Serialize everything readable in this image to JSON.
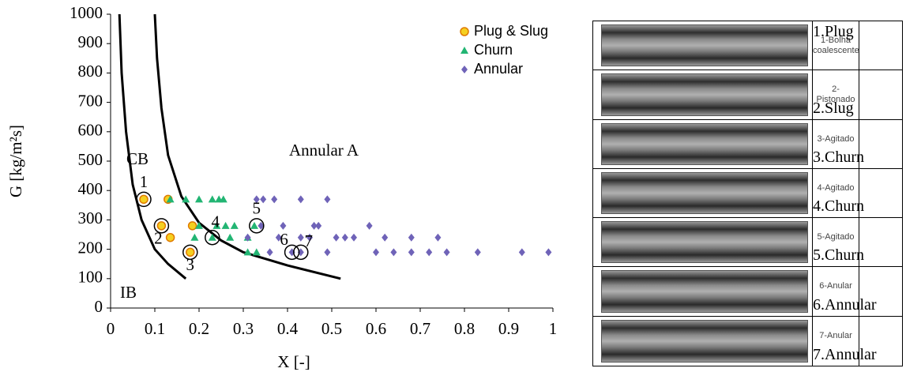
{
  "chart_data": {
    "type": "scatter",
    "xlabel": "X [-]",
    "ylabel": "G [kg/m²s]",
    "xlim": [
      0,
      1
    ],
    "ylim": [
      0,
      1000
    ],
    "xticks": [
      0,
      0.1,
      0.2,
      0.3,
      0.4,
      0.5,
      0.6,
      0.7,
      0.8,
      0.9,
      1
    ],
    "yticks": [
      0,
      100,
      200,
      300,
      400,
      500,
      600,
      700,
      800,
      900,
      1000
    ],
    "region_label": "Annular A",
    "series": [
      {
        "name": "Plug & Slug",
        "color": "#f5d020",
        "marker": "circle",
        "x": [
          0.075,
          0.13,
          0.115,
          0.185,
          0.135,
          0.18
        ],
        "y": [
          370,
          370,
          280,
          280,
          240,
          190
        ]
      },
      {
        "name": "Churn",
        "color": "#22b573",
        "marker": "triangle",
        "x": [
          0.135,
          0.17,
          0.2,
          0.23,
          0.245,
          0.255,
          0.2,
          0.24,
          0.26,
          0.28,
          0.325,
          0.19,
          0.23,
          0.27,
          0.31,
          0.31,
          0.33
        ],
        "y": [
          370,
          370,
          370,
          370,
          370,
          370,
          280,
          280,
          280,
          280,
          280,
          240,
          240,
          240,
          240,
          190,
          190
        ]
      },
      {
        "name": "Annular",
        "color": "#6f63b8",
        "marker": "diamond",
        "x": [
          0.33,
          0.345,
          0.37,
          0.43,
          0.49,
          0.34,
          0.39,
          0.46,
          0.47,
          0.585,
          0.31,
          0.38,
          0.43,
          0.45,
          0.51,
          0.53,
          0.55,
          0.62,
          0.68,
          0.74,
          0.36,
          0.41,
          0.43,
          0.49,
          0.6,
          0.64,
          0.68,
          0.72,
          0.76,
          0.83,
          0.93,
          0.99
        ],
        "y": [
          370,
          370,
          370,
          370,
          370,
          280,
          280,
          280,
          280,
          280,
          240,
          240,
          240,
          240,
          240,
          240,
          240,
          240,
          240,
          240,
          190,
          190,
          190,
          190,
          190,
          190,
          190,
          190,
          190,
          190,
          190,
          190
        ]
      }
    ],
    "boundaries": [
      {
        "name": "CB",
        "x": [
          0.1,
          0.105,
          0.115,
          0.13,
          0.16,
          0.2,
          0.25,
          0.3,
          0.4,
          0.52
        ],
        "y": [
          1000,
          850,
          680,
          520,
          380,
          290,
          230,
          190,
          145,
          100
        ]
      },
      {
        "name": "IB",
        "x": [
          0.02,
          0.025,
          0.035,
          0.05,
          0.07,
          0.1,
          0.13,
          0.17
        ],
        "y": [
          1000,
          800,
          600,
          420,
          300,
          200,
          150,
          100
        ]
      }
    ],
    "annotations": [
      {
        "text": "1",
        "x": 0.075,
        "y": 370
      },
      {
        "text": "2",
        "x": 0.115,
        "y": 280
      },
      {
        "text": "3",
        "x": 0.18,
        "y": 190
      },
      {
        "text": "4",
        "x": 0.23,
        "y": 240
      },
      {
        "text": "5",
        "x": 0.33,
        "y": 280
      },
      {
        "text": "6",
        "x": 0.41,
        "y": 190
      },
      {
        "text": "7",
        "x": 0.43,
        "y": 190
      }
    ]
  },
  "image_table": {
    "rows": [
      {
        "caption": "1-Bolha coalescente",
        "label": "1.Plug"
      },
      {
        "caption": "2-Pistonado",
        "label": "2.Slug"
      },
      {
        "caption": "3-Agitado",
        "label": "3.Churn"
      },
      {
        "caption": "4-Agitado",
        "label": "4.Churn"
      },
      {
        "caption": "5-Agitado",
        "label": "5.Churn"
      },
      {
        "caption": "6-Anular",
        "label": "6.Annular"
      },
      {
        "caption": "7-Anular",
        "label": "7.Annular"
      }
    ]
  }
}
